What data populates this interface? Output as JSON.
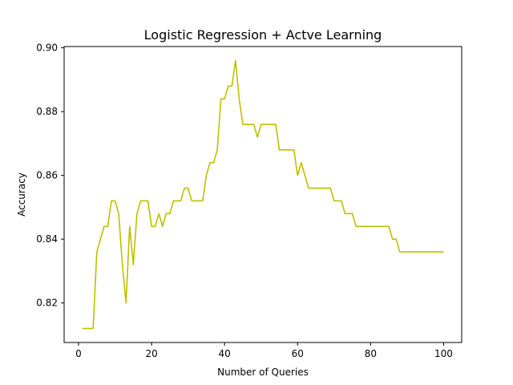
{
  "chart_data": {
    "type": "line",
    "title": "Logistic Regression + Actve Learning",
    "xlabel": "Number of Queries",
    "ylabel": "Accuracy",
    "xlim": [
      -3.95,
      104.95
    ],
    "ylim": [
      0.8076,
      0.9004
    ],
    "xticks": [
      0,
      20,
      40,
      60,
      80,
      100
    ],
    "xtick_labels": [
      "0",
      "20",
      "40",
      "60",
      "80",
      "100"
    ],
    "yticks": [
      0.82,
      0.84,
      0.86,
      0.88,
      0.9
    ],
    "ytick_labels": [
      "0.82",
      "0.84",
      "0.86",
      "0.88",
      "0.90"
    ],
    "grid": false,
    "legend": "none",
    "series": [
      {
        "color": "#bfbf00",
        "x": [
          1,
          2,
          3,
          4,
          5,
          6,
          7,
          8,
          9,
          10,
          11,
          12,
          13,
          14,
          15,
          16,
          17,
          18,
          19,
          20,
          21,
          22,
          23,
          24,
          25,
          26,
          27,
          28,
          29,
          30,
          31,
          32,
          33,
          34,
          35,
          36,
          37,
          38,
          39,
          40,
          41,
          42,
          43,
          44,
          45,
          46,
          47,
          48,
          49,
          50,
          51,
          52,
          53,
          54,
          55,
          56,
          57,
          58,
          59,
          60,
          61,
          62,
          63,
          64,
          65,
          66,
          67,
          68,
          69,
          70,
          71,
          72,
          73,
          74,
          75,
          76,
          77,
          78,
          79,
          80,
          81,
          82,
          83,
          84,
          85,
          86,
          87,
          88,
          89,
          90,
          91,
          92,
          93,
          94,
          95,
          96,
          97,
          98,
          99,
          100
        ],
        "y": [
          0.812,
          0.812,
          0.812,
          0.812,
          0.836,
          0.84,
          0.844,
          0.844,
          0.852,
          0.852,
          0.848,
          0.832,
          0.82,
          0.844,
          0.832,
          0.848,
          0.852,
          0.852,
          0.852,
          0.844,
          0.844,
          0.848,
          0.844,
          0.848,
          0.848,
          0.852,
          0.852,
          0.852,
          0.856,
          0.856,
          0.852,
          0.852,
          0.852,
          0.852,
          0.86,
          0.864,
          0.864,
          0.868,
          0.884,
          0.884,
          0.888,
          0.888,
          0.896,
          0.884,
          0.876,
          0.876,
          0.876,
          0.876,
          0.872,
          0.876,
          0.876,
          0.876,
          0.876,
          0.876,
          0.868,
          0.868,
          0.868,
          0.868,
          0.868,
          0.86,
          0.864,
          0.86,
          0.856,
          0.856,
          0.856,
          0.856,
          0.856,
          0.856,
          0.856,
          0.852,
          0.852,
          0.852,
          0.848,
          0.848,
          0.848,
          0.844,
          0.844,
          0.844,
          0.844,
          0.844,
          0.844,
          0.844,
          0.844,
          0.844,
          0.844,
          0.84,
          0.84,
          0.836,
          0.836,
          0.836,
          0.836,
          0.836,
          0.836,
          0.836,
          0.836,
          0.836,
          0.836,
          0.836,
          0.836,
          0.836
        ]
      }
    ]
  }
}
